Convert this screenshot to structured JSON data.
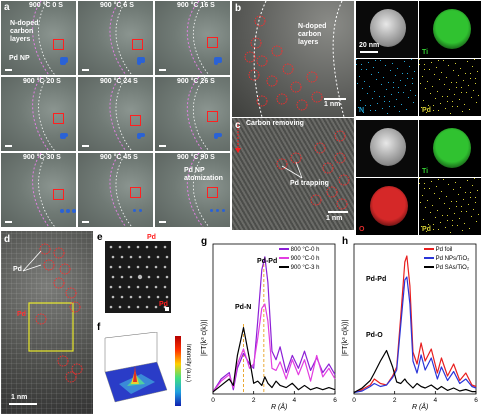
{
  "panel_a": {
    "letter": "a",
    "tiles": [
      {
        "label": "900 °C 0 S"
      },
      {
        "label": "900 °C 6 S"
      },
      {
        "label": "900 °C 16 S"
      },
      {
        "label": "900 °C 20 S"
      },
      {
        "label": "900 °C 24 S"
      },
      {
        "label": "900 °C 26 S"
      },
      {
        "label": "900 °C 30 S"
      },
      {
        "label": "900 °C 45 S"
      },
      {
        "label": "900 °C 90 S"
      }
    ],
    "annotations": {
      "carbon": "N-doped\ncarbon\nlayers",
      "pdnp": "Pd NP",
      "atomization": "Pd NP\natomization"
    }
  },
  "panel_b": {
    "letter": "b",
    "annotation": "N-doped\ncarbon\nlayers",
    "scale": "1 nm",
    "maps": [
      {
        "label": "",
        "scale": "20 nm",
        "color": "#cfcfcf"
      },
      {
        "label": "Ti",
        "color": "#33cc33"
      },
      {
        "label": "N",
        "color": "#22a6d6"
      },
      {
        "label": "Pd",
        "color": "#d6cf33"
      }
    ]
  },
  "panel_c": {
    "letter": "c",
    "title": "Carbon removing",
    "annotation": "Pd trapping",
    "scale": "1 nm",
    "maps": [
      {
        "label": "",
        "color": "#cfcfcf"
      },
      {
        "label": "Ti",
        "color": "#33cc33"
      },
      {
        "label": "O",
        "color": "#e02a2a"
      },
      {
        "label": "Pd",
        "color": "#d6cf33"
      }
    ]
  },
  "panel_d": {
    "letter": "d",
    "labels": {
      "pd1": "Pd",
      "pd2": "Pd"
    },
    "scale": "1 nm"
  },
  "panel_e": {
    "letter": "e",
    "labels": {
      "pd_top": "Pd",
      "pd_bottom": "Pd"
    }
  },
  "panel_f": {
    "letter": "f",
    "colorbar_label": "Intensity (a.u.)"
  },
  "panel_g": {
    "letter": "g",
    "ylabel": "|FT(k³ c(k))|",
    "xlabel": "R (Å)",
    "annotations": {
      "pdpd": "Pd-Pd",
      "pdn": "Pd-N"
    },
    "legend": [
      {
        "name": "800 °C-0 h",
        "color": "#8c1fd6"
      },
      {
        "name": "900 °C-0 h",
        "color": "#e23de0"
      },
      {
        "name": "900 °C-3 h",
        "color": "#000000"
      }
    ]
  },
  "panel_h": {
    "letter": "h",
    "ylabel": "|FT(k³ c(k))|",
    "xlabel": "R (Å)",
    "annotations": {
      "pdpd": "Pd-Pd",
      "pdo": "Pd-O"
    },
    "legend": [
      {
        "name": "Pd foil",
        "color": "#e81e1e"
      },
      {
        "name": "Pd NPs/TiO₂",
        "color": "#2a35d8"
      },
      {
        "name": "Pd SAs/TiO₂",
        "color": "#000000"
      }
    ]
  },
  "chart_data": [
    {
      "type": "line",
      "xlabel": "R (Å)",
      "ylabel": "|FT(k³ c(k))|",
      "xlim": [
        0,
        6
      ],
      "xticks": [
        0,
        2,
        4,
        6
      ],
      "series": [
        {
          "name": "800 °C-0 h",
          "color": "#8c1fd6",
          "x": [
            0,
            0.4,
            0.8,
            1.0,
            1.2,
            1.5,
            1.8,
            2.0,
            2.2,
            2.4,
            2.55,
            2.7,
            2.9,
            3.1,
            3.3,
            3.6,
            3.9,
            4.2,
            4.5,
            4.8,
            5.1,
            5.4,
            5.7,
            6.0
          ],
          "y": [
            0.05,
            0.35,
            0.5,
            0.1,
            0.6,
            0.95,
            0.7,
            0.6,
            1.7,
            2.9,
            3.2,
            2.6,
            1.0,
            0.8,
            1.1,
            0.5,
            0.9,
            0.6,
            1.0,
            0.55,
            0.85,
            0.5,
            0.7,
            0.45
          ]
        },
        {
          "name": "900 °C-0 h",
          "color": "#e23de0",
          "x": [
            0,
            0.4,
            0.8,
            1.0,
            1.2,
            1.5,
            1.8,
            2.0,
            2.2,
            2.4,
            2.55,
            2.7,
            2.9,
            3.1,
            3.3,
            3.6,
            3.9,
            4.2,
            4.5,
            4.8,
            5.1,
            5.4,
            5.7,
            6.0
          ],
          "y": [
            0.05,
            0.3,
            0.45,
            0.15,
            0.7,
            1.05,
            0.6,
            0.7,
            1.3,
            2.0,
            2.1,
            1.7,
            0.6,
            0.55,
            0.75,
            0.35,
            0.8,
            0.45,
            0.8,
            0.3,
            0.9,
            0.4,
            0.6,
            0.35
          ]
        },
        {
          "name": "900 °C-3 h",
          "color": "#000000",
          "x": [
            0,
            0.4,
            0.8,
            1.0,
            1.2,
            1.5,
            1.8,
            2.0,
            2.2,
            2.4,
            2.55,
            2.7,
            2.9,
            3.1,
            3.3,
            3.6,
            3.9,
            4.2,
            4.5,
            4.8,
            5.1,
            5.4,
            5.7,
            6.0
          ],
          "y": [
            0.05,
            0.2,
            0.35,
            0.2,
            0.9,
            1.55,
            0.8,
            0.25,
            0.3,
            0.2,
            0.4,
            0.25,
            0.15,
            0.3,
            0.2,
            0.15,
            0.25,
            0.1,
            0.2,
            0.1,
            0.15,
            0.1,
            0.15,
            0.1
          ]
        }
      ]
    },
    {
      "type": "line",
      "xlabel": "R (Å)",
      "ylabel": "|FT(k³ c(k))|",
      "xlim": [
        0,
        6
      ],
      "xticks": [
        0,
        2,
        4,
        6
      ],
      "series": [
        {
          "name": "Pd foil",
          "color": "#e81e1e",
          "x": [
            0,
            0.4,
            0.8,
            1.0,
            1.3,
            1.6,
            1.9,
            2.1,
            2.3,
            2.5,
            2.6,
            2.75,
            2.9,
            3.1,
            3.3,
            3.5,
            3.8,
            4.1,
            4.3,
            4.6,
            4.9,
            5.2,
            5.5,
            5.8,
            6.0
          ],
          "y": [
            0.05,
            0.15,
            0.3,
            0.5,
            0.35,
            0.3,
            0.6,
            0.9,
            2.6,
            4.4,
            4.6,
            3.6,
            1.4,
            1.0,
            1.7,
            1.1,
            1.5,
            0.7,
            1.2,
            0.6,
            1.0,
            0.45,
            0.7,
            0.3,
            0.25
          ]
        },
        {
          "name": "Pd NPs/TiO₂",
          "color": "#2a35d8",
          "x": [
            0,
            0.4,
            0.8,
            1.0,
            1.3,
            1.6,
            1.9,
            2.1,
            2.3,
            2.5,
            2.6,
            2.75,
            2.9,
            3.1,
            3.3,
            3.5,
            3.8,
            4.1,
            4.3,
            4.6,
            4.9,
            5.2,
            5.5,
            5.8,
            6.0
          ],
          "y": [
            0.05,
            0.1,
            0.25,
            0.35,
            0.25,
            0.3,
            0.55,
            0.8,
            2.3,
            3.8,
            3.9,
            3.0,
            1.1,
            0.7,
            1.3,
            0.8,
            1.2,
            0.5,
            0.9,
            0.45,
            0.75,
            0.35,
            0.5,
            0.25,
            0.2
          ]
        },
        {
          "name": "Pd SAs/TiO₂",
          "color": "#000000",
          "x": [
            0,
            0.4,
            0.8,
            1.0,
            1.3,
            1.6,
            1.9,
            2.1,
            2.3,
            2.5,
            2.6,
            2.75,
            2.9,
            3.1,
            3.3,
            3.5,
            3.8,
            4.1,
            4.3,
            4.6,
            4.9,
            5.2,
            5.5,
            5.8,
            6.0
          ],
          "y": [
            0.05,
            0.2,
            0.45,
            0.7,
            1.1,
            1.45,
            0.9,
            0.4,
            0.35,
            0.5,
            0.4,
            0.3,
            0.2,
            0.35,
            0.25,
            0.2,
            0.3,
            0.15,
            0.25,
            0.12,
            0.2,
            0.1,
            0.15,
            0.08,
            0.08
          ]
        }
      ]
    }
  ]
}
